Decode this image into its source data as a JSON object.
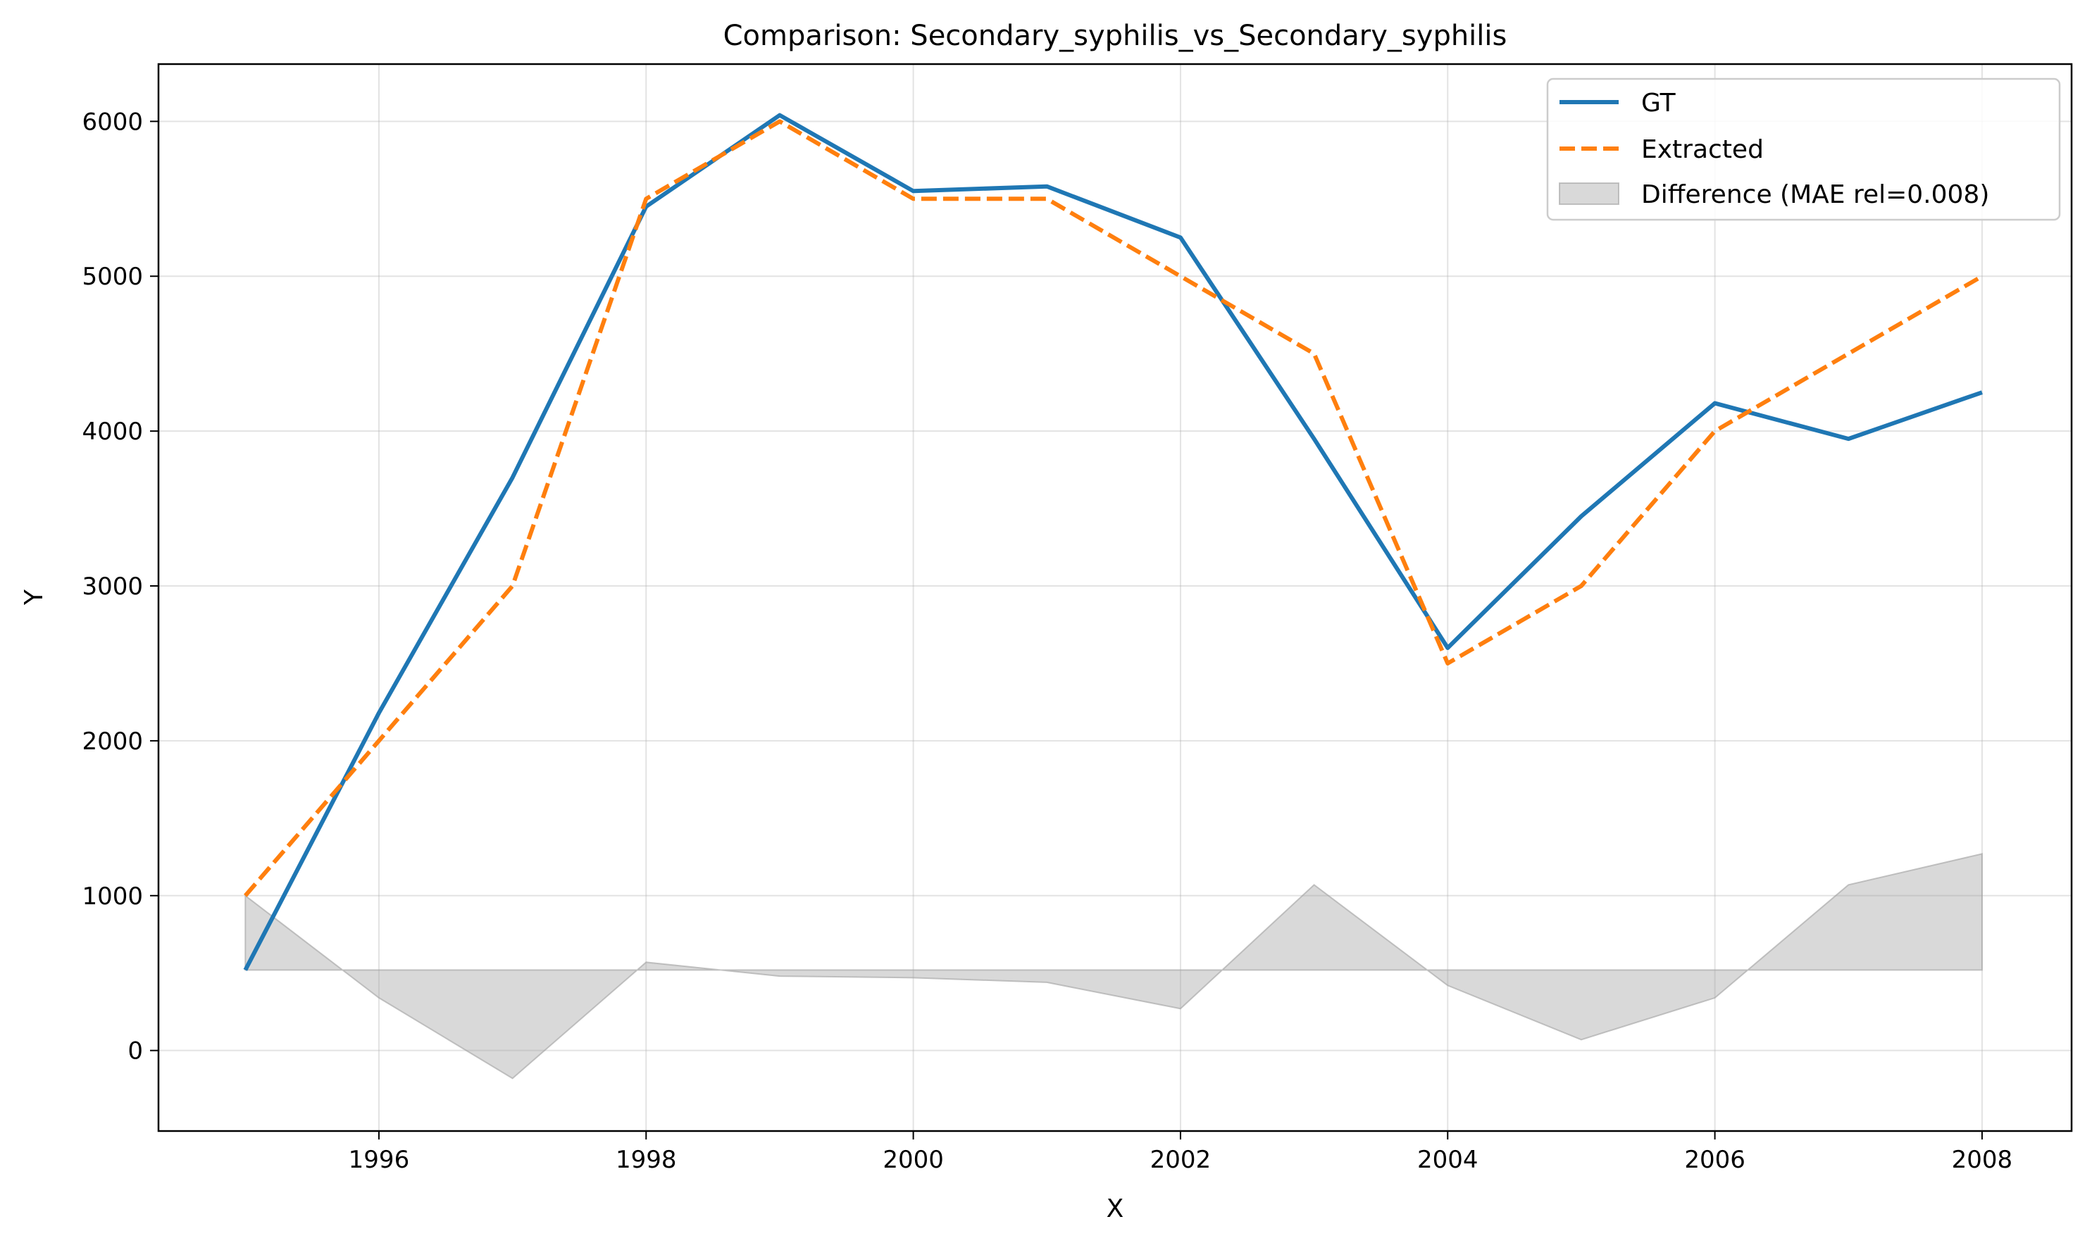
{
  "chart_data": {
    "type": "line",
    "title": "Comparison: Secondary_syphilis_vs_Secondary_syphilis",
    "xlabel": "X",
    "ylabel": "Y",
    "xlim": [
      1994.35,
      2008.67
    ],
    "ylim": [
      -520,
      6370
    ],
    "x_ticks": [
      1996,
      1998,
      2000,
      2002,
      2004,
      2006,
      2008
    ],
    "y_ticks": [
      0,
      1000,
      2000,
      3000,
      4000,
      5000,
      6000
    ],
    "grid": true,
    "legend_position": "top-right",
    "x": [
      1995,
      1996,
      1997,
      1998,
      1999,
      2000,
      2001,
      2002,
      2003,
      2004,
      2005,
      2006,
      2007,
      2008
    ],
    "series": [
      {
        "name": "GT",
        "style": "solid",
        "color": "#1f77b4",
        "values": [
          520,
          2180,
          3700,
          5450,
          6040,
          5550,
          5580,
          5250,
          3950,
          2600,
          3450,
          4180,
          3950,
          4250
        ]
      },
      {
        "name": "Extracted",
        "style": "dashed",
        "color": "#ff7f0e",
        "values": [
          1000,
          2000,
          3000,
          5500,
          6000,
          5500,
          5500,
          5000,
          4500,
          2500,
          3000,
          4000,
          4500,
          5000
        ]
      }
    ],
    "difference": {
      "name": "Difference (MAE rel=0.008)",
      "color": "#a0a0a0",
      "baseline": 520
    }
  }
}
